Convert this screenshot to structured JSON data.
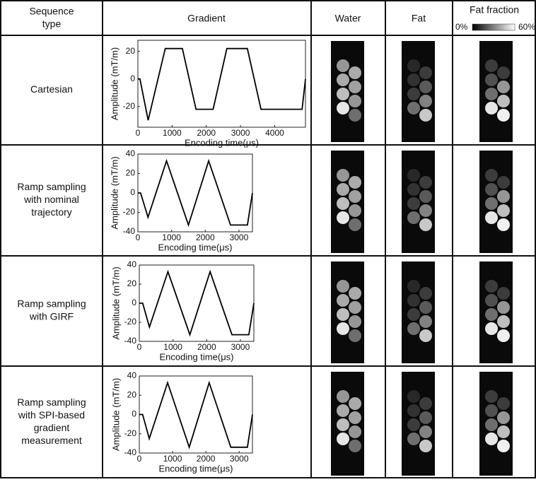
{
  "table": {
    "header": {
      "sequence_type": [
        "Sequence",
        "type"
      ],
      "gradient": "Gradient",
      "water": "Water",
      "fat": "Fat",
      "fat_fraction": "Fat fraction",
      "colorbar_min": "0%",
      "colorbar_max": "60%"
    },
    "rows": [
      {
        "label": [
          "Cartesian"
        ]
      },
      {
        "label": [
          "Ramp sampling",
          "with nominal",
          "trajectory"
        ]
      },
      {
        "label": [
          "Ramp sampling",
          "with GIRF"
        ]
      },
      {
        "label": [
          "Ramp sampling",
          "with SPI-based",
          "gradient",
          "measurement"
        ]
      }
    ]
  },
  "chart_data": [
    {
      "type": "line",
      "xlabel": "Encoding time(μs)",
      "ylabel": "Amplitude (mT/m)",
      "color": "#000000",
      "x": [
        0,
        60,
        300,
        800,
        1300,
        1700,
        2200,
        2600,
        3200,
        3600,
        4800,
        4900
      ],
      "values": [
        0,
        0,
        -30,
        22,
        22,
        -22,
        -22,
        22,
        22,
        -22,
        -22,
        0
      ],
      "xlim": [
        0,
        4900
      ],
      "ylim": [
        -35,
        28
      ],
      "xticks": [
        0,
        1000,
        2000,
        3000,
        4000
      ],
      "yticks": [
        -20,
        0,
        20
      ]
    },
    {
      "type": "line",
      "xlabel": "Encoding time(μs)",
      "ylabel": "Amplitude (mT/m)",
      "color": "#000000",
      "x": [
        0,
        80,
        300,
        850,
        1500,
        2100,
        2750,
        3250,
        3400
      ],
      "values": [
        0,
        0,
        -25,
        33,
        -33,
        33,
        -33,
        -33,
        0
      ],
      "xlim": [
        0,
        3400
      ],
      "ylim": [
        -40,
        40
      ],
      "xticks": [
        0,
        1000,
        2000,
        3000
      ],
      "yticks": [
        -40,
        -20,
        0,
        20,
        40
      ]
    },
    {
      "type": "line",
      "xlabel": "Encoding time(μs)",
      "ylabel": "Amplitude (mT/m)",
      "color": "#000000",
      "x": [
        0,
        100,
        300,
        850,
        1500,
        2100,
        2750,
        3250,
        3400
      ],
      "values": [
        0,
        0,
        -25,
        33,
        -33,
        33,
        -33,
        -33,
        0
      ],
      "xlim": [
        0,
        3400
      ],
      "ylim": [
        -40,
        40
      ],
      "xticks": [
        0,
        1000,
        2000,
        3000
      ],
      "yticks": [
        -40,
        -20,
        0,
        20,
        40
      ]
    },
    {
      "type": "line",
      "xlabel": "Encoding time(μs)",
      "ylabel": "Amplitude (mT/m)",
      "color": "#000000",
      "x": [
        0,
        100,
        300,
        850,
        1500,
        2100,
        2750,
        3250,
        3400
      ],
      "values": [
        0,
        0,
        -25,
        33,
        -34,
        33,
        -34,
        -34,
        0
      ],
      "xlim": [
        0,
        3400
      ],
      "ylim": [
        -40,
        40
      ],
      "xticks": [
        0,
        1000,
        2000,
        3000
      ],
      "yticks": [
        -40,
        -20,
        0,
        20,
        40
      ]
    }
  ]
}
